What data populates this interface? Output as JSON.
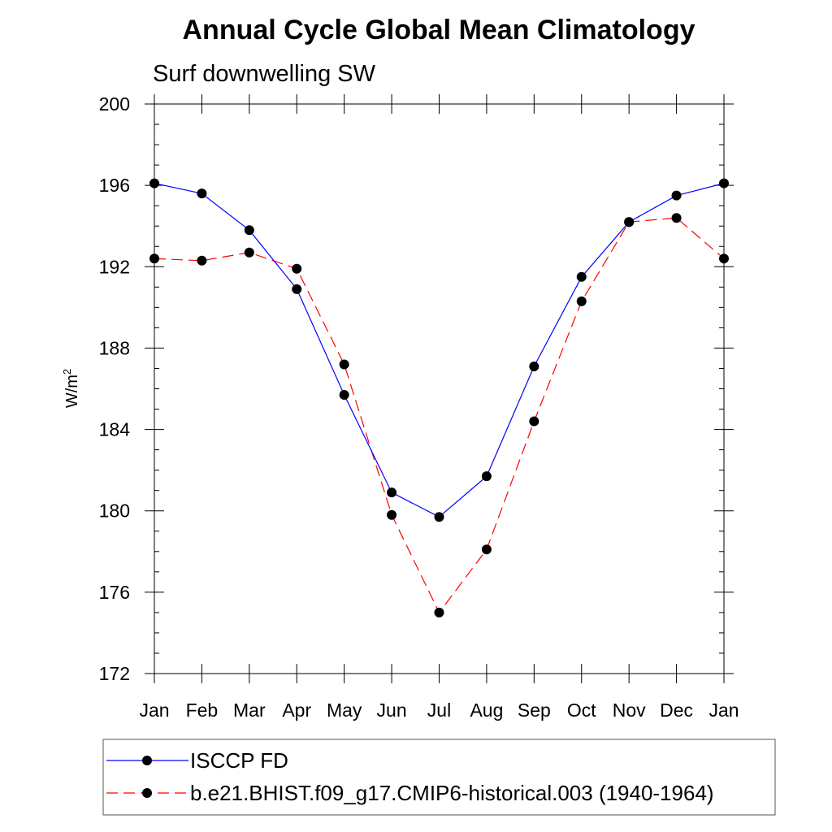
{
  "chart_data": {
    "type": "line",
    "title": "Annual Cycle Global Mean Climatology",
    "subtitle": "Surf downwelling SW",
    "ylabel": "W/m",
    "ylabel_sup": "2",
    "xlabel": "",
    "categories": [
      "Jan",
      "Feb",
      "Mar",
      "Apr",
      "May",
      "Jun",
      "Jul",
      "Aug",
      "Sep",
      "Oct",
      "Nov",
      "Dec",
      "Jan"
    ],
    "ylim": [
      172,
      200
    ],
    "yticks": [
      172,
      176,
      180,
      184,
      188,
      192,
      196,
      200
    ],
    "grid": false,
    "legend_position": "bottom",
    "series": [
      {
        "name": "ISCCP FD",
        "color": "#0000ff",
        "dash": "solid",
        "marker": "circle",
        "values": [
          196.1,
          195.6,
          193.8,
          190.9,
          185.7,
          180.9,
          179.7,
          181.7,
          187.1,
          191.5,
          194.2,
          195.5,
          196.1
        ]
      },
      {
        "name": "b.e21.BHIST.f09_g17.CMIP6-historical.003 (1940-1964)",
        "color": "#ff0000",
        "dash": "dashed",
        "marker": "circle",
        "values": [
          192.4,
          192.3,
          192.7,
          191.9,
          187.2,
          179.8,
          175.0,
          178.1,
          184.4,
          190.3,
          194.2,
          194.4,
          192.4
        ]
      }
    ]
  }
}
